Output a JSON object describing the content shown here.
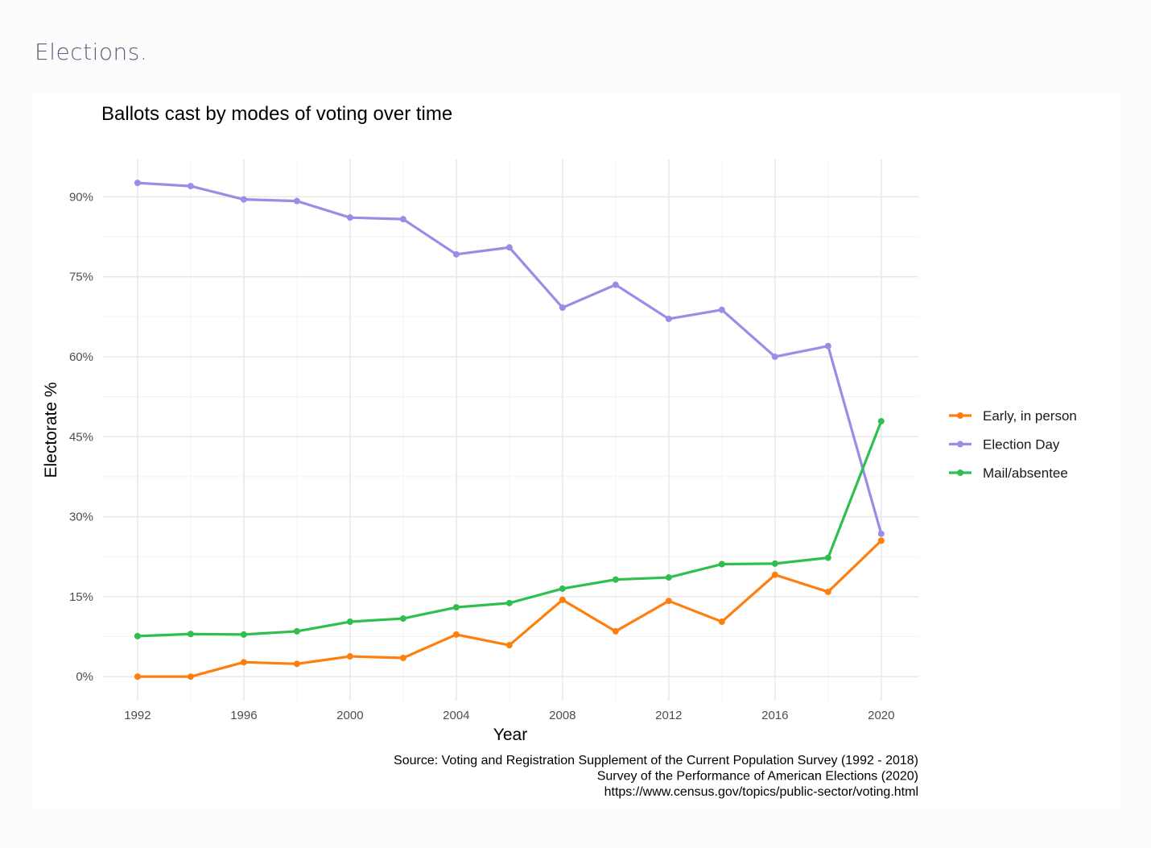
{
  "page": {
    "heading": "Elections."
  },
  "chart_data": {
    "type": "line",
    "title": "Ballots cast by modes of voting over time",
    "xlabel": "Year",
    "ylabel": "Electorate %",
    "x": [
      1992,
      1994,
      1996,
      1998,
      2000,
      2002,
      2004,
      2006,
      2008,
      2010,
      2012,
      2014,
      2016,
      2018,
      2020
    ],
    "xticks": [
      "1992",
      "1996",
      "2000",
      "2004",
      "2008",
      "2012",
      "2016",
      "2020"
    ],
    "yticks": [
      "0%",
      "15%",
      "30%",
      "45%",
      "60%",
      "75%",
      "90%"
    ],
    "xlim": [
      1990.7,
      2021.4
    ],
    "ylim": [
      -4.5,
      97
    ],
    "grid": true,
    "legend_position": "right",
    "series": [
      {
        "name": "Early, in person",
        "color": "#ff7f0e",
        "values": [
          0,
          0,
          2.7,
          2.4,
          3.8,
          3.5,
          7.9,
          5.9,
          14.4,
          8.5,
          14.2,
          10.3,
          19.1,
          15.9,
          25.5
        ]
      },
      {
        "name": "Election Day",
        "color": "#9b8ce6",
        "values": [
          92.6,
          92.0,
          89.5,
          89.2,
          86.1,
          85.8,
          79.2,
          80.5,
          69.2,
          73.5,
          67.1,
          68.8,
          60.0,
          62.0,
          26.8
        ]
      },
      {
        "name": "Mail/absentee",
        "color": "#2fbf4f",
        "values": [
          7.6,
          8.0,
          7.9,
          8.5,
          10.3,
          10.9,
          13.0,
          13.8,
          16.5,
          18.2,
          18.6,
          21.1,
          21.2,
          22.3,
          47.9
        ]
      }
    ],
    "caption": [
      "Source: Voting and Registration Supplement of the Current Population Survey (1992 - 2018)",
      "Survey of the Performance of American Elections (2020)",
      "https://www.census.gov/topics/public-sector/voting.html"
    ]
  }
}
